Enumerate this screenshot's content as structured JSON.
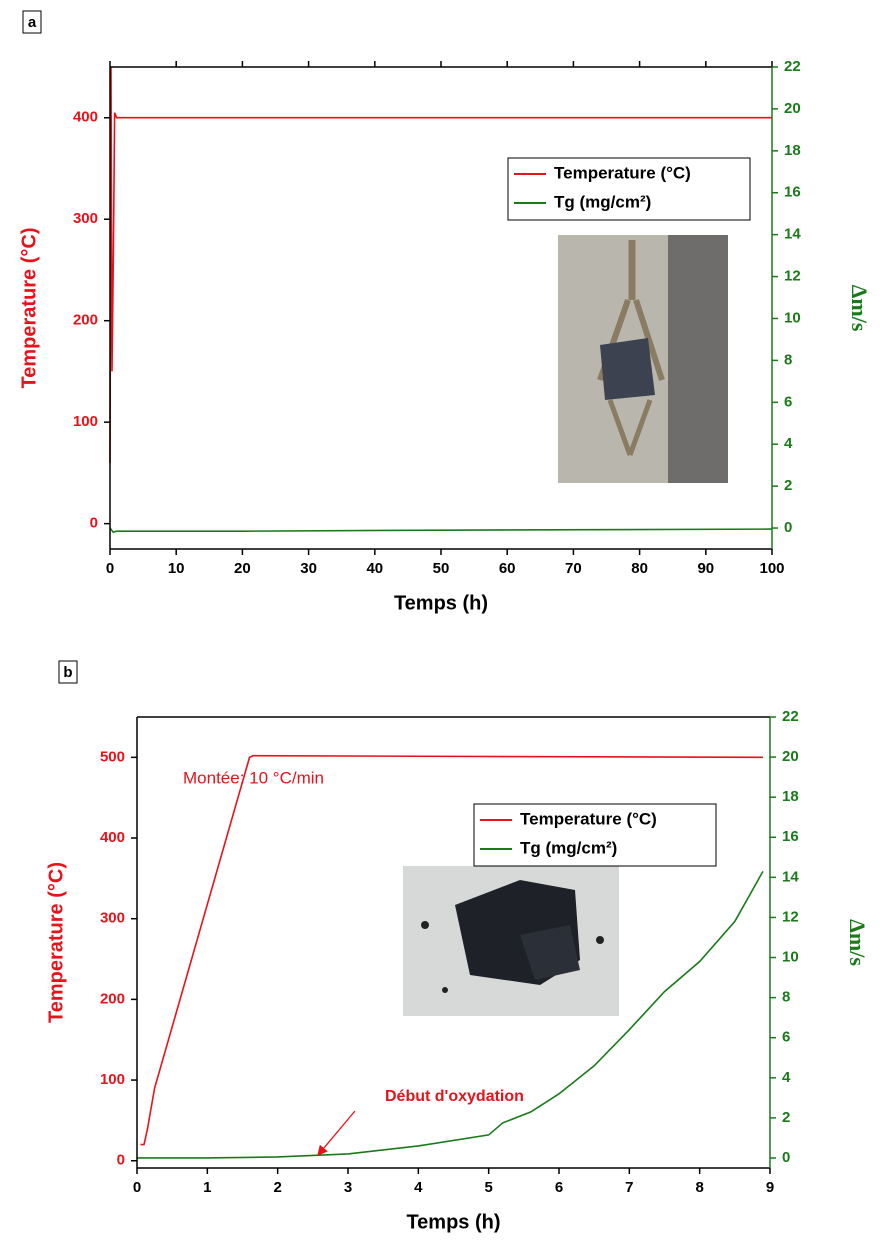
{
  "chart_data": [
    {
      "type": "line",
      "panel_label": "a",
      "x_label": "Temps (h)",
      "y_label": "Temperature (°C)",
      "y2_label": "Δm/s",
      "xlim": [
        0,
        100
      ],
      "xticks": [
        0,
        10,
        20,
        30,
        40,
        50,
        60,
        70,
        80,
        90,
        100
      ],
      "ylim": [
        -25,
        450
      ],
      "yticks": [
        0,
        100,
        200,
        300,
        400
      ],
      "y2lim": [
        -1,
        22
      ],
      "y2ticks": [
        0,
        2,
        4,
        6,
        8,
        10,
        12,
        14,
        16,
        18,
        20,
        22
      ],
      "series": [
        {
          "name": "Temperature (°C)",
          "color": "#e8121a",
          "x": [
            0,
            0.15,
            0.3,
            0.5,
            0.7,
            1,
            100
          ],
          "values": [
            60,
            450,
            150,
            260,
            405,
            400,
            400
          ]
        },
        {
          "name": "Tg (mg/cm²)",
          "color": "#1a7a1a",
          "axis": "y2",
          "x": [
            0,
            0.5,
            1,
            20,
            50,
            100
          ],
          "values": [
            0,
            -0.2,
            -0.15,
            -0.15,
            -0.1,
            -0.05
          ]
        }
      ]
    },
    {
      "type": "line",
      "panel_label": "b",
      "x_label": "Temps (h)",
      "y_label": "Temperature (°C)",
      "y2_label": "Δm/s",
      "xlim": [
        0,
        9
      ],
      "xticks": [
        0,
        1,
        2,
        3,
        4,
        5,
        6,
        7,
        8,
        9
      ],
      "ylim": [
        -9,
        550
      ],
      "yticks": [
        0,
        100,
        200,
        300,
        400,
        500
      ],
      "y2lim": [
        -0.5,
        22
      ],
      "y2ticks": [
        0,
        2,
        4,
        6,
        8,
        10,
        12,
        14,
        16,
        18,
        20,
        22
      ],
      "annotations": [
        "Montée: 10 °C/min",
        "Début d'oxydation"
      ],
      "series": [
        {
          "name": "Temperature (°C)",
          "color": "#e8121a",
          "x": [
            0.05,
            0.1,
            0.15,
            0.25,
            1.6,
            1.65,
            8.9
          ],
          "values": [
            20,
            20,
            40,
            90,
            500,
            502,
            500
          ]
        },
        {
          "name": "Tg (mg/cm²)",
          "color": "#1a7a1a",
          "axis": "y2",
          "x": [
            0,
            1,
            2,
            3,
            4,
            5,
            5.2,
            5.6,
            6,
            6.5,
            7,
            7.5,
            8,
            8.5,
            8.9
          ],
          "values": [
            0,
            0,
            0.05,
            0.2,
            0.6,
            1.15,
            1.75,
            2.3,
            3.2,
            4.6,
            6.4,
            8.3,
            9.8,
            11.8,
            14.3
          ]
        }
      ]
    }
  ]
}
